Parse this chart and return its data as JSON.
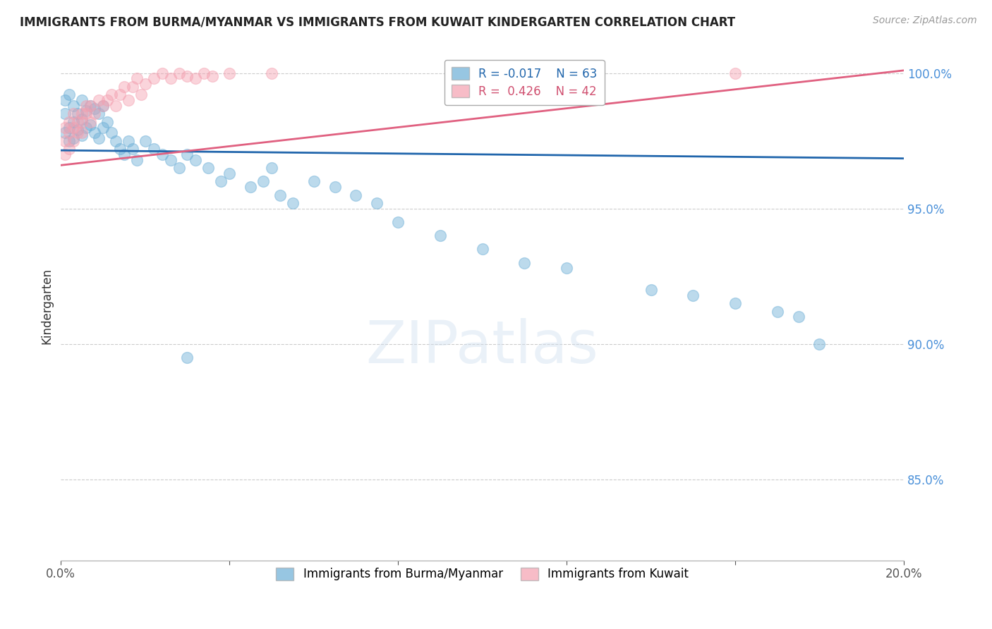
{
  "title": "IMMIGRANTS FROM BURMA/MYANMAR VS IMMIGRANTS FROM KUWAIT KINDERGARTEN CORRELATION CHART",
  "source_text": "Source: ZipAtlas.com",
  "ylabel": "Kindergarten",
  "xlim": [
    0.0,
    0.2
  ],
  "ylim": [
    0.82,
    1.008
  ],
  "y_ticks": [
    0.85,
    0.9,
    0.95,
    1.0
  ],
  "y_tick_labels": [
    "85.0%",
    "90.0%",
    "95.0%",
    "100.0%"
  ],
  "legend_blue_label": "Immigrants from Burma/Myanmar",
  "legend_pink_label": "Immigrants from Kuwait",
  "R_blue": -0.017,
  "N_blue": 63,
  "R_pink": 0.426,
  "N_pink": 42,
  "blue_color": "#6baed6",
  "pink_color": "#f4a0b0",
  "blue_line_color": "#2166ac",
  "pink_line_color": "#e06080",
  "blue_line_y0": 0.9715,
  "blue_line_y1": 0.9685,
  "pink_line_y0": 0.966,
  "pink_line_y1": 1.001,
  "blue_scatter_x": [
    0.001,
    0.001,
    0.001,
    0.002,
    0.002,
    0.002,
    0.003,
    0.003,
    0.003,
    0.004,
    0.004,
    0.005,
    0.005,
    0.005,
    0.006,
    0.006,
    0.007,
    0.007,
    0.008,
    0.008,
    0.009,
    0.009,
    0.01,
    0.01,
    0.011,
    0.012,
    0.013,
    0.014,
    0.015,
    0.016,
    0.017,
    0.018,
    0.02,
    0.022,
    0.024,
    0.026,
    0.028,
    0.03,
    0.032,
    0.035,
    0.038,
    0.04,
    0.045,
    0.048,
    0.052,
    0.055,
    0.06,
    0.065,
    0.07,
    0.075,
    0.08,
    0.09,
    0.1,
    0.11,
    0.12,
    0.14,
    0.15,
    0.16,
    0.17,
    0.175,
    0.05,
    0.03,
    0.18
  ],
  "blue_scatter_y": [
    0.99,
    0.985,
    0.978,
    0.992,
    0.98,
    0.975,
    0.988,
    0.982,
    0.976,
    0.985,
    0.979,
    0.99,
    0.983,
    0.977,
    0.986,
    0.98,
    0.988,
    0.981,
    0.987,
    0.978,
    0.985,
    0.976,
    0.988,
    0.98,
    0.982,
    0.978,
    0.975,
    0.972,
    0.97,
    0.975,
    0.972,
    0.968,
    0.975,
    0.972,
    0.97,
    0.968,
    0.965,
    0.97,
    0.968,
    0.965,
    0.96,
    0.963,
    0.958,
    0.96,
    0.955,
    0.952,
    0.96,
    0.958,
    0.955,
    0.952,
    0.945,
    0.94,
    0.935,
    0.93,
    0.928,
    0.92,
    0.918,
    0.915,
    0.912,
    0.91,
    0.965,
    0.895,
    0.9
  ],
  "pink_scatter_x": [
    0.001,
    0.001,
    0.001,
    0.002,
    0.002,
    0.002,
    0.003,
    0.003,
    0.003,
    0.004,
    0.004,
    0.005,
    0.005,
    0.005,
    0.006,
    0.006,
    0.007,
    0.007,
    0.008,
    0.009,
    0.01,
    0.011,
    0.012,
    0.013,
    0.014,
    0.015,
    0.016,
    0.017,
    0.018,
    0.019,
    0.02,
    0.022,
    0.024,
    0.026,
    0.028,
    0.03,
    0.032,
    0.034,
    0.036,
    0.04,
    0.05,
    0.16
  ],
  "pink_scatter_y": [
    0.98,
    0.975,
    0.97,
    0.982,
    0.978,
    0.972,
    0.985,
    0.98,
    0.975,
    0.982,
    0.978,
    0.985,
    0.982,
    0.978,
    0.988,
    0.985,
    0.982,
    0.988,
    0.985,
    0.99,
    0.988,
    0.99,
    0.992,
    0.988,
    0.992,
    0.995,
    0.99,
    0.995,
    0.998,
    0.992,
    0.996,
    0.998,
    1.0,
    0.998,
    1.0,
    0.999,
    0.998,
    1.0,
    0.999,
    1.0,
    1.0,
    1.0
  ]
}
